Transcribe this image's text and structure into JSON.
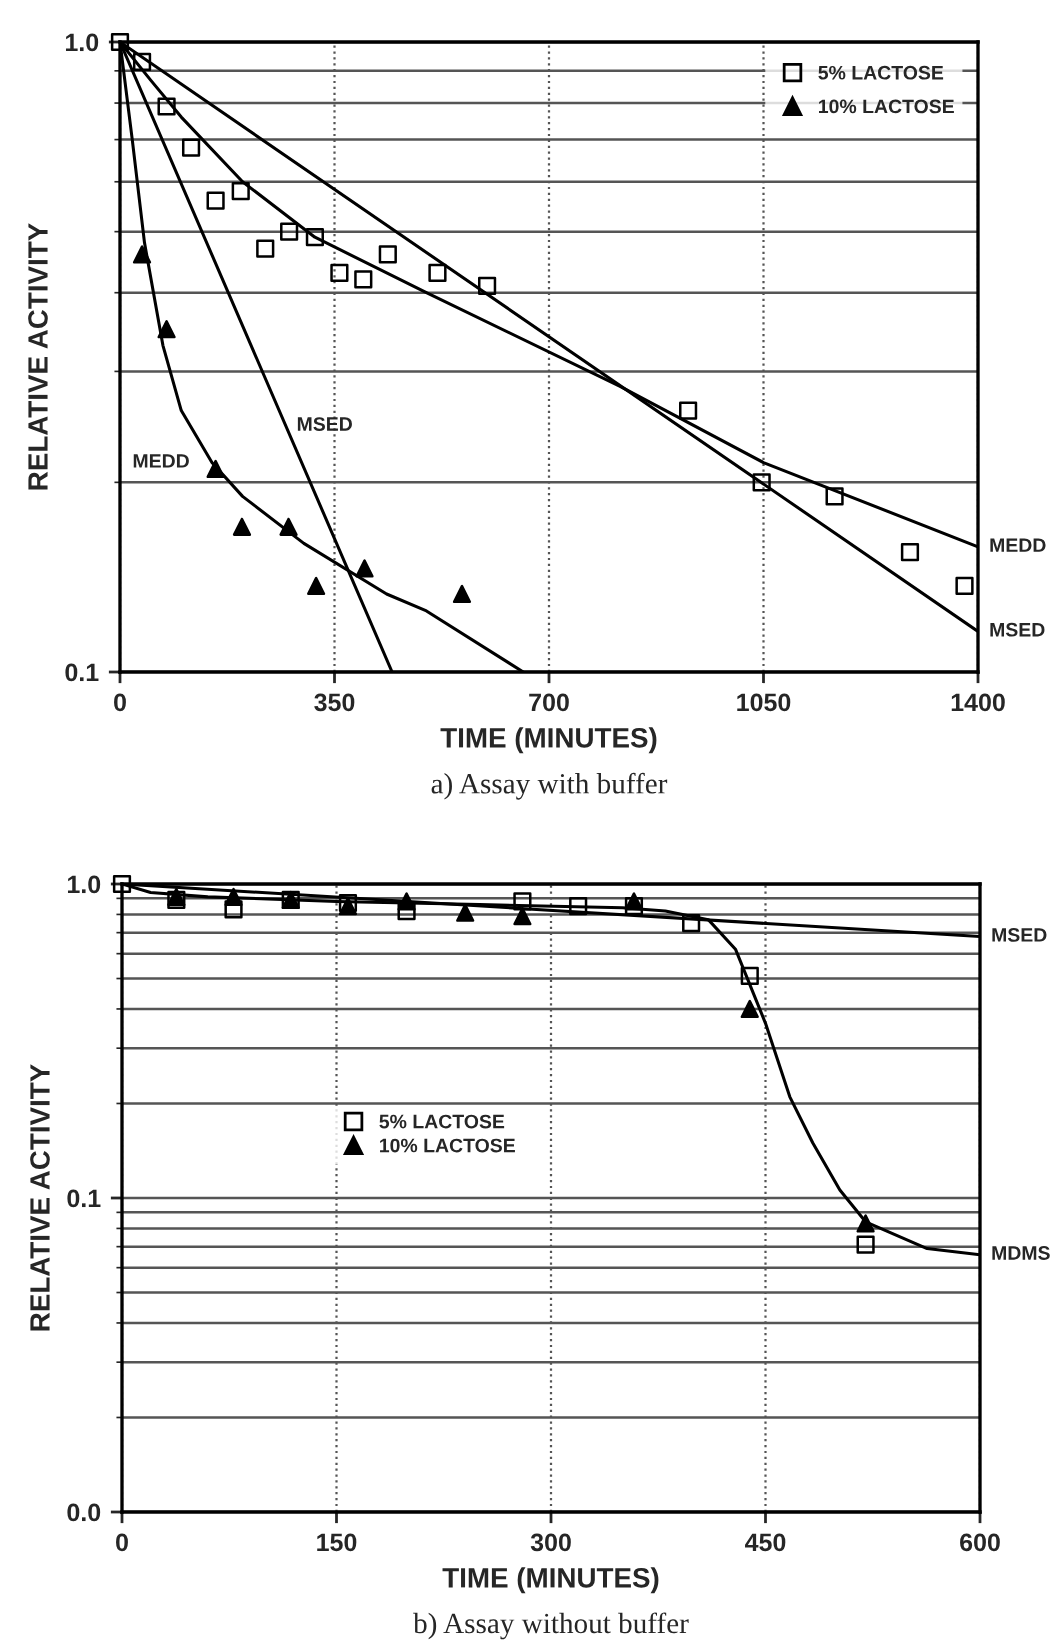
{
  "chart_data": [
    {
      "type": "scatter",
      "title": "a) Assay with buffer",
      "xlabel": "TIME (MINUTES)",
      "ylabel": "RELATIVE ACTIVITY",
      "log": "y",
      "grid": true,
      "legend": "top right",
      "xlim": [
        0,
        1400
      ],
      "xticks": [
        0,
        350,
        700,
        1050,
        1400
      ],
      "ylim": [
        0.1,
        1.0
      ],
      "yticks": [
        {
          "value": 0.1,
          "label": "0.1"
        },
        {
          "value": 1,
          "label": "1.0"
        }
      ],
      "series": [
        {
          "name": "5% LACTOSE",
          "marker": "square",
          "color": "#000000",
          "x": [
            0,
            36,
            76,
            116,
            156,
            197,
            237,
            276,
            318,
            358,
            397,
            437,
            518,
            599,
            927,
            1047,
            1166,
            1289,
            1378
          ],
          "values": [
            1.0,
            0.93,
            0.79,
            0.68,
            0.56,
            0.58,
            0.47,
            0.5,
            0.49,
            0.43,
            0.42,
            0.46,
            0.43,
            0.41,
            0.26,
            0.2,
            0.19,
            0.155,
            0.137
          ]
        },
        {
          "name": "10% LACTOSE",
          "marker": "triangle",
          "color": "#000000",
          "x": [
            36,
            76,
            156,
            199,
            275,
            320,
            399,
            558
          ],
          "values": [
            0.46,
            0.35,
            0.21,
            0.17,
            0.17,
            0.137,
            0.146,
            0.133
          ]
        },
        {
          "type": "line",
          "marker": "none",
          "color": "#000000",
          "x": [
            0,
            50,
            100,
            200,
            318,
            500,
            816,
            1050,
            1400
          ],
          "values": [
            1.0,
            0.87,
            0.76,
            0.6,
            0.49,
            0.4,
            0.284,
            0.215,
            0.158
          ]
        },
        {
          "type": "line",
          "marker": "none",
          "color": "#000000",
          "x": [
            0,
            1400
          ],
          "values": [
            1.0,
            0.116
          ]
        },
        {
          "type": "line",
          "marker": "none",
          "color": "#000000",
          "x": [
            0,
            444
          ],
          "values": [
            1.0,
            0.1
          ]
        },
        {
          "type": "line",
          "marker": "none",
          "color": "#000000",
          "x": [
            0,
            20,
            40,
            70,
            100,
            150,
            200,
            300,
            435,
            500,
            658
          ],
          "values": [
            1.0,
            0.7,
            0.48,
            0.33,
            0.26,
            0.215,
            0.19,
            0.16,
            0.133,
            0.125,
            0.1
          ]
        }
      ],
      "annotations": [
        {
          "text": "MEDD",
          "x": 1400,
          "y": 0.158
        },
        {
          "text": "MSED",
          "x": 1400,
          "y": 0.116
        },
        {
          "text": "MSED",
          "x": 270,
          "y": 0.246
        },
        {
          "text": "MEDD",
          "x": 150,
          "y": 0.215
        }
      ]
    },
    {
      "type": "scatter",
      "title": "b) Assay without buffer",
      "xlabel": "TIME (MINUTES)",
      "ylabel": "RELATIVE ACTIVITY",
      "log": "y",
      "grid": true,
      "legend": "center left",
      "xlim": [
        0,
        600
      ],
      "xticks": [
        0,
        150,
        300,
        450,
        600
      ],
      "ylim": [
        0.01,
        1.0
      ],
      "yticks": [
        {
          "value": 0.01,
          "label": "0.0"
        },
        {
          "value": 0.1,
          "label": "0.1"
        },
        {
          "value": 1,
          "label": "1.0"
        }
      ],
      "series": [
        {
          "name": "5% LACTOSE",
          "marker": "square",
          "color": "#000000",
          "x": [
            0,
            38,
            78,
            118,
            158,
            199,
            280,
            319,
            358,
            398,
            439,
            520
          ],
          "values": [
            1.0,
            0.89,
            0.83,
            0.89,
            0.87,
            0.82,
            0.88,
            0.85,
            0.85,
            0.75,
            0.51,
            0.071
          ]
        },
        {
          "name": "10% LACTOSE",
          "marker": "triangle",
          "color": "#000000",
          "x": [
            38,
            78,
            118,
            158,
            199,
            240,
            280,
            358,
            439,
            520
          ],
          "values": [
            0.91,
            0.91,
            0.89,
            0.85,
            0.88,
            0.81,
            0.79,
            0.88,
            0.4,
            0.083
          ]
        },
        {
          "type": "line",
          "marker": "none",
          "color": "#000000",
          "x": [
            0,
            600
          ],
          "values": [
            1.0,
            0.68
          ]
        },
        {
          "type": "line",
          "marker": "none",
          "color": "#000000",
          "x": [
            0,
            20,
            60,
            150,
            250,
            350,
            380,
            410,
            429,
            450,
            467,
            483,
            502,
            520,
            563,
            600
          ],
          "values": [
            1.0,
            0.94,
            0.91,
            0.88,
            0.86,
            0.84,
            0.82,
            0.77,
            0.62,
            0.36,
            0.21,
            0.15,
            0.106,
            0.084,
            0.069,
            0.066
          ]
        }
      ],
      "annotations": [
        {
          "text": "MSED",
          "x": 600,
          "y": 0.68
        },
        {
          "text": "MDMS",
          "x": 600,
          "y": 0.066
        }
      ]
    }
  ]
}
